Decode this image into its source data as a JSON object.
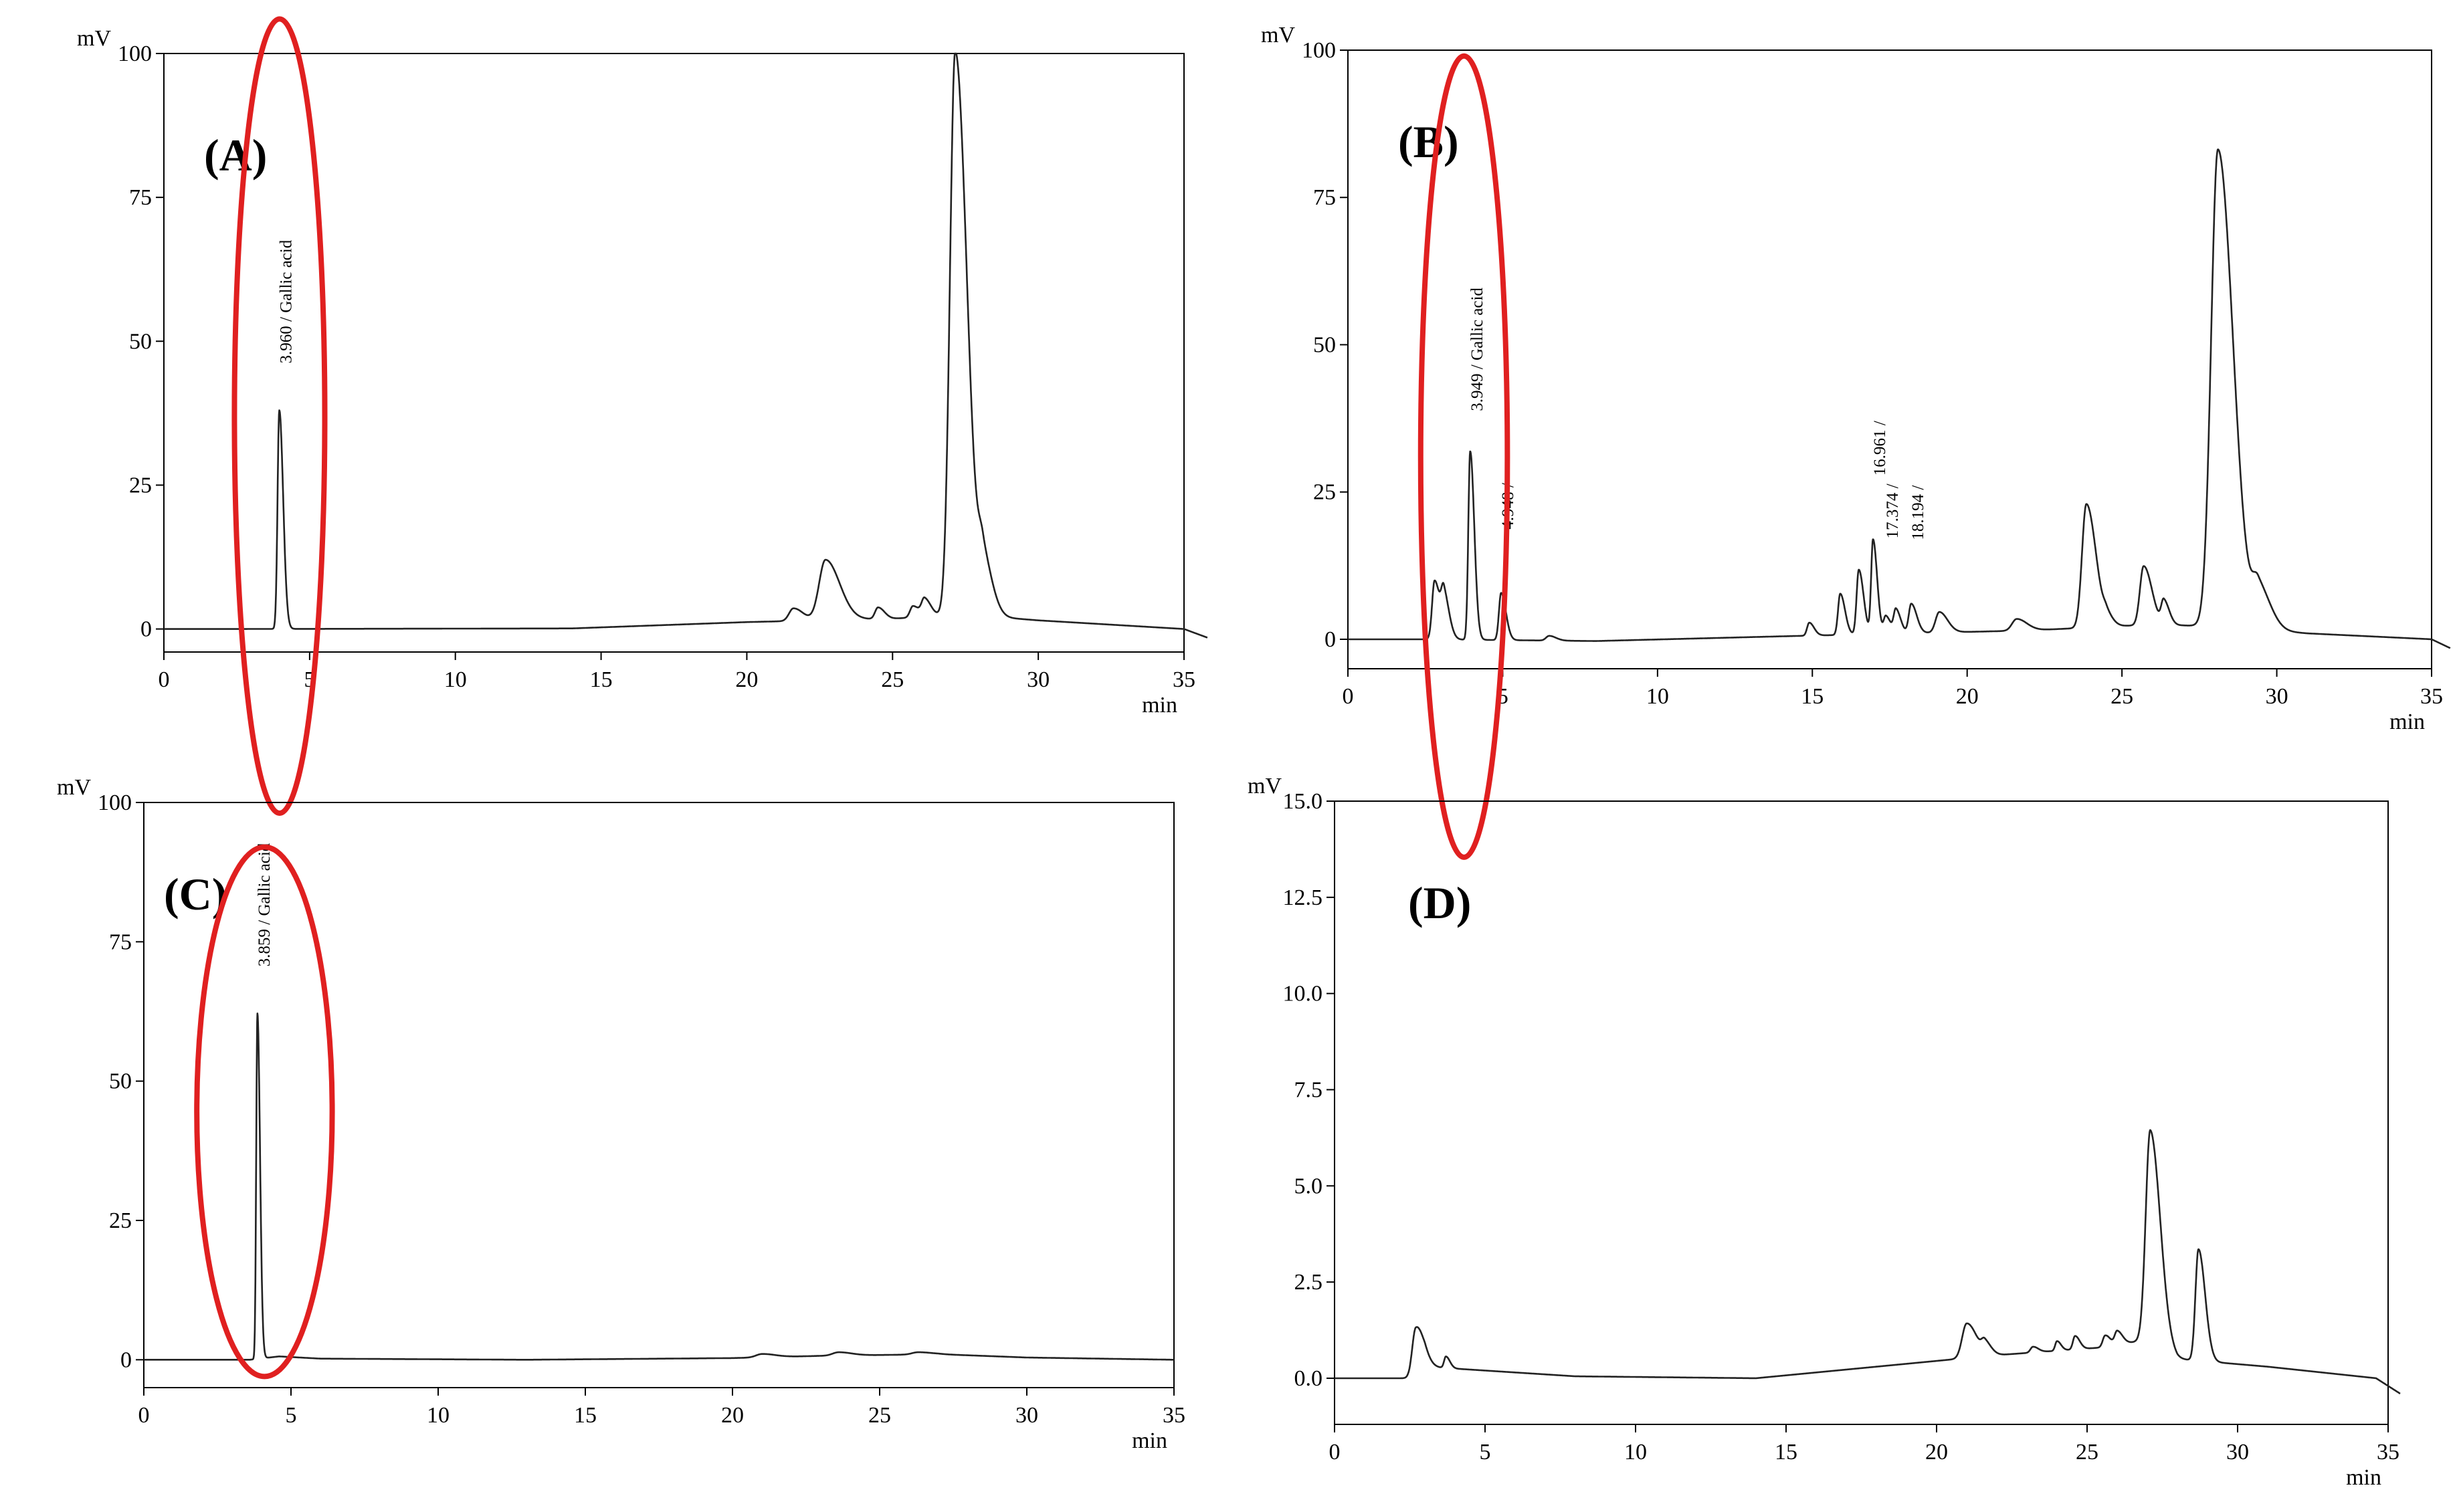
{
  "chart_data": [
    {
      "type": "line",
      "panel_label": "(A)",
      "ylabel": "mV",
      "xlabel": "min",
      "xlim": [
        0,
        35
      ],
      "ylim": [
        -4,
        100
      ],
      "xticks": [
        "0",
        "5",
        "10",
        "15",
        "20",
        "25",
        "30",
        "35"
      ],
      "yticks": [
        "0",
        "25",
        "50",
        "75",
        "100"
      ],
      "peaks": [
        {
          "rt": 3.96,
          "height": 38,
          "width": 0.06
        },
        {
          "rt": 21.6,
          "height": 2.2,
          "width": 0.15
        },
        {
          "rt": 22.7,
          "height": 10.5,
          "width": 0.22
        },
        {
          "rt": 24.5,
          "height": 2,
          "width": 0.1
        },
        {
          "rt": 25.7,
          "height": 2,
          "width": 0.1
        },
        {
          "rt": 26.1,
          "height": 3,
          "width": 0.1
        },
        {
          "rt": 27.15,
          "height": 98,
          "width": 0.18
        },
        {
          "rt": 28.1,
          "height": 9,
          "width": 0.15
        }
      ],
      "baseline": [
        [
          0,
          0
        ],
        [
          2.5,
          0
        ],
        [
          14,
          0.1
        ],
        [
          20,
          1.2
        ],
        [
          25,
          1.8
        ],
        [
          27.5,
          2.5
        ],
        [
          30,
          1.5
        ],
        [
          35,
          0
        ],
        [
          35.8,
          -1.5
        ]
      ],
      "annotations": [
        {
          "text": "3.960 / Gallic acid",
          "x": 3.96
        }
      ],
      "highlight_ellipse": {
        "x_center": 3.97,
        "x_halfwidth": 1.55,
        "y_center": 37,
        "y_halfheight": 69
      },
      "highlight_color": "#e02020"
    },
    {
      "type": "line",
      "panel_label": "(B)",
      "ylabel": "mV",
      "xlabel": "min",
      "xlim": [
        0,
        35
      ],
      "ylim": [
        -5,
        100
      ],
      "xticks": [
        "0",
        "5",
        "10",
        "15",
        "20",
        "25",
        "30",
        "35"
      ],
      "yticks": [
        "0",
        "25",
        "50",
        "75",
        "100"
      ],
      "peaks": [
        {
          "rt": 2.8,
          "height": 10,
          "width": 0.08
        },
        {
          "rt": 3.1,
          "height": 7,
          "width": 0.08
        },
        {
          "rt": 3.949,
          "height": 32,
          "width": 0.06
        },
        {
          "rt": 4.948,
          "height": 8,
          "width": 0.07
        },
        {
          "rt": 6.5,
          "height": 0.8,
          "width": 0.1
        },
        {
          "rt": 14.9,
          "height": 2.2,
          "width": 0.07
        },
        {
          "rt": 15.9,
          "height": 7,
          "width": 0.07
        },
        {
          "rt": 16.5,
          "height": 11,
          "width": 0.07
        },
        {
          "rt": 16.96,
          "height": 16,
          "width": 0.06
        },
        {
          "rt": 17.374,
          "height": 3,
          "width": 0.07
        },
        {
          "rt": 17.7,
          "height": 4,
          "width": 0.07
        },
        {
          "rt": 18.194,
          "height": 5,
          "width": 0.08
        },
        {
          "rt": 19.1,
          "height": 3.5,
          "width": 0.12
        },
        {
          "rt": 21.6,
          "height": 2,
          "width": 0.15
        },
        {
          "rt": 23.85,
          "height": 21,
          "width": 0.14
        },
        {
          "rt": 24.5,
          "height": 1.5,
          "width": 0.1
        },
        {
          "rt": 25.7,
          "height": 10,
          "width": 0.12
        },
        {
          "rt": 26.35,
          "height": 4,
          "width": 0.08
        },
        {
          "rt": 28.1,
          "height": 81,
          "width": 0.22
        },
        {
          "rt": 29.4,
          "height": 7,
          "width": 0.18
        }
      ],
      "baseline": [
        [
          0,
          0
        ],
        [
          2.5,
          0
        ],
        [
          8,
          -0.3
        ],
        [
          14,
          0.5
        ],
        [
          18,
          1
        ],
        [
          22,
          1.5
        ],
        [
          26,
          2.5
        ],
        [
          28,
          2.2
        ],
        [
          31,
          1
        ],
        [
          35,
          0
        ],
        [
          35.6,
          -1.5
        ]
      ],
      "annotations": [
        {
          "text": "3.949 / Gallic acid",
          "x": 3.949
        },
        {
          "text": "4.948 /",
          "x": 4.948
        },
        {
          "text": "16.961 /",
          "x": 16.96
        },
        {
          "text": "17.374 /",
          "x": 17.374
        },
        {
          "text": "18.194 /",
          "x": 18.194
        }
      ],
      "highlight_ellipse": {
        "x_center": 3.75,
        "x_halfwidth": 1.4,
        "y_center": 31,
        "y_halfheight": 68
      },
      "highlight_color": "#e02020"
    },
    {
      "type": "line",
      "panel_label": "(C)",
      "ylabel": "mV",
      "xlabel": "min",
      "xlim": [
        0,
        35
      ],
      "ylim": [
        -5,
        100
      ],
      "xticks": [
        "0",
        "5",
        "10",
        "15",
        "20",
        "25",
        "30",
        "35"
      ],
      "yticks": [
        "0",
        "25",
        "50",
        "75",
        "100"
      ],
      "peaks": [
        {
          "rt": 3.859,
          "height": 62,
          "width": 0.04
        },
        {
          "rt": 21.0,
          "height": 0.6,
          "width": 0.2
        },
        {
          "rt": 23.6,
          "height": 0.6,
          "width": 0.2
        },
        {
          "rt": 26.3,
          "height": 0.4,
          "width": 0.2
        }
      ],
      "baseline": [
        [
          0,
          0
        ],
        [
          3.6,
          0
        ],
        [
          4.6,
          0.6
        ],
        [
          6,
          0.2
        ],
        [
          13,
          0
        ],
        [
          20,
          0.3
        ],
        [
          23,
          0.7
        ],
        [
          27,
          1
        ],
        [
          30,
          0.4
        ],
        [
          35,
          0
        ]
      ],
      "annotations": [
        {
          "text": "3.859 / Gallic acid",
          "x": 3.859
        }
      ],
      "highlight_ellipse": {
        "x_center": 4.1,
        "x_halfwidth": 2.3,
        "y_center": 44.5,
        "y_halfheight": 47.5
      },
      "highlight_color": "#e02020"
    },
    {
      "type": "line",
      "panel_label": "(D)",
      "ylabel": "mV",
      "xlabel": "min",
      "xlim": [
        0,
        35
      ],
      "ylim": [
        -1.2,
        15
      ],
      "xticks": [
        "0",
        "5",
        "10",
        "15",
        "20",
        "25",
        "30",
        "35"
      ],
      "yticks": [
        "0.0",
        "2.5",
        "5.0",
        "7.5",
        "10.0",
        "12.5",
        "15.0"
      ],
      "peaks": [
        {
          "rt": 2.7,
          "height": 1.2,
          "width": 0.12
        },
        {
          "rt": 3.7,
          "height": 0.3,
          "width": 0.06
        },
        {
          "rt": 21.0,
          "height": 0.9,
          "width": 0.15
        },
        {
          "rt": 21.6,
          "height": 0.3,
          "width": 0.1
        },
        {
          "rt": 23.2,
          "height": 0.15,
          "width": 0.08
        },
        {
          "rt": 24.0,
          "height": 0.25,
          "width": 0.06
        },
        {
          "rt": 24.6,
          "height": 0.35,
          "width": 0.07
        },
        {
          "rt": 25.6,
          "height": 0.3,
          "width": 0.08
        },
        {
          "rt": 26.0,
          "height": 0.35,
          "width": 0.08
        },
        {
          "rt": 27.1,
          "height": 5.5,
          "width": 0.15
        },
        {
          "rt": 28.7,
          "height": 2.9,
          "width": 0.1
        }
      ],
      "baseline": [
        [
          0,
          0
        ],
        [
          2.5,
          0
        ],
        [
          3,
          0.3
        ],
        [
          5,
          0.2
        ],
        [
          8,
          0.05
        ],
        [
          14,
          0
        ],
        [
          18,
          0.3
        ],
        [
          22,
          0.6
        ],
        [
          25.5,
          0.8
        ],
        [
          27,
          1
        ],
        [
          28,
          0.5
        ],
        [
          31,
          0.3
        ],
        [
          34.6,
          0
        ],
        [
          35.4,
          -0.4
        ]
      ],
      "annotations": [],
      "highlight_ellipse": null,
      "highlight_color": "#e02020"
    }
  ]
}
